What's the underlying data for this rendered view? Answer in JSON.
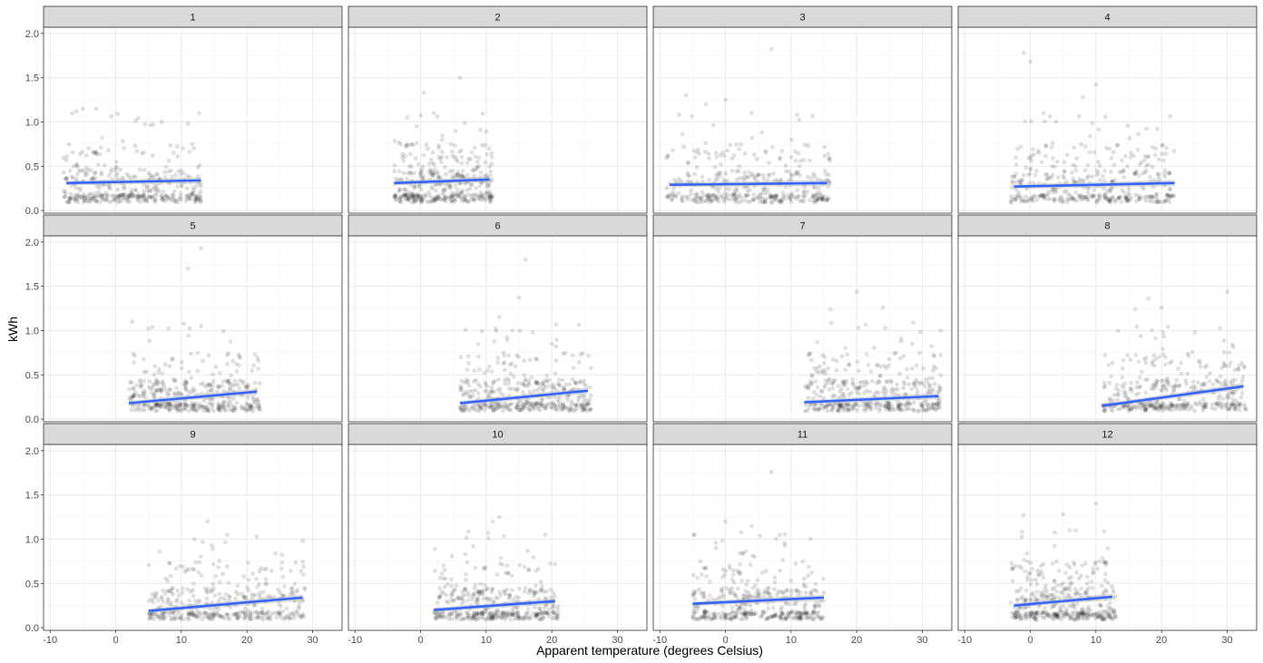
{
  "chart_data": {
    "type": "scatter",
    "title": "",
    "xlabel": "Apparent temperature (degrees Celsius)",
    "ylabel": "kWh",
    "xlim": [
      -11,
      34.5
    ],
    "ylim": [
      -0.03,
      2.07
    ],
    "xticks": [
      -10,
      0,
      10,
      20,
      30
    ],
    "xtick_labels": [
      "-10",
      "0",
      "10",
      "20",
      "30"
    ],
    "yticks": [
      0,
      0.5,
      1,
      1.5,
      2
    ],
    "ytick_labels": [
      "0.0",
      "0.5",
      "1.0",
      "1.5",
      "2.0"
    ],
    "grid": true,
    "point_alpha": 0.12,
    "colors": {
      "trend": "#3366ff",
      "band": "#bdbdbd",
      "points": "#000000",
      "strip": "#d9d9d9",
      "grid": "#ebebeb"
    },
    "facet_layout": {
      "rows": 3,
      "cols": 4
    },
    "facets": [
      {
        "label": "1",
        "temp_range": [
          -8,
          13
        ],
        "fit": [
          [
            -7.5,
            0.31
          ],
          [
            13,
            0.34
          ]
        ],
        "outliers": [
          [
            -5,
            1.15
          ],
          [
            7,
            1.0
          ],
          [
            -6,
            1.12
          ],
          [
            -3,
            1.15
          ],
          [
            11,
            0.98
          ]
        ]
      },
      {
        "label": "2",
        "temp_range": [
          -4,
          11
        ],
        "fit": [
          [
            -4,
            0.31
          ],
          [
            10.5,
            0.35
          ]
        ],
        "outliers": [
          [
            6,
            1.5
          ],
          [
            0.5,
            1.33
          ],
          [
            -2,
            1.05
          ],
          [
            2,
            1.1
          ]
        ]
      },
      {
        "label": "3",
        "temp_range": [
          -9,
          16
        ],
        "fit": [
          [
            -8.5,
            0.29
          ],
          [
            15.5,
            0.31
          ]
        ],
        "outliers": [
          [
            7,
            1.82
          ],
          [
            -6,
            1.3
          ],
          [
            0,
            1.25
          ],
          [
            -3,
            1.2
          ],
          [
            4,
            1.1
          ]
        ]
      },
      {
        "label": "4",
        "temp_range": [
          -3,
          22
        ],
        "fit": [
          [
            -2.5,
            0.27
          ],
          [
            22,
            0.31
          ]
        ],
        "outliers": [
          [
            -1,
            1.78
          ],
          [
            0,
            1.68
          ],
          [
            10,
            1.42
          ],
          [
            8,
            1.28
          ],
          [
            2,
            1.1
          ]
        ]
      },
      {
        "label": "5",
        "temp_range": [
          2,
          22
        ],
        "fit": [
          [
            2,
            0.18
          ],
          [
            21.5,
            0.31
          ]
        ],
        "outliers": [
          [
            13,
            1.93
          ],
          [
            11,
            1.7
          ],
          [
            5,
            1.02
          ],
          [
            13,
            1.05
          ]
        ]
      },
      {
        "label": "6",
        "temp_range": [
          6,
          26
        ],
        "fit": [
          [
            6,
            0.18
          ],
          [
            25.5,
            0.32
          ]
        ],
        "outliers": [
          [
            16,
            1.8
          ],
          [
            15,
            1.37
          ],
          [
            12,
            1.15
          ],
          [
            14,
            1.0
          ]
        ]
      },
      {
        "label": "7",
        "temp_range": [
          12,
          33
        ],
        "fit": [
          [
            12,
            0.19
          ],
          [
            32.5,
            0.26
          ]
        ],
        "outliers": [
          [
            20,
            1.44
          ],
          [
            16,
            1.24
          ],
          [
            24,
            1.26
          ],
          [
            14,
            0.87
          ]
        ]
      },
      {
        "label": "8",
        "temp_range": [
          11,
          33
        ],
        "fit": [
          [
            11,
            0.15
          ],
          [
            32.5,
            0.37
          ]
        ],
        "outliers": [
          [
            30,
            1.44
          ],
          [
            18,
            1.36
          ],
          [
            16,
            1.24
          ],
          [
            20,
            1.26
          ]
        ]
      },
      {
        "label": "9",
        "temp_range": [
          5,
          29
        ],
        "fit": [
          [
            5,
            0.19
          ],
          [
            28.5,
            0.34
          ]
        ],
        "outliers": [
          [
            14,
            1.2
          ],
          [
            17,
            1.05
          ],
          [
            28.5,
            0.98
          ],
          [
            12,
            1.0
          ]
        ]
      },
      {
        "label": "10",
        "temp_range": [
          2,
          21
        ],
        "fit": [
          [
            2,
            0.2
          ],
          [
            20.5,
            0.3
          ]
        ],
        "outliers": [
          [
            12,
            1.25
          ],
          [
            11,
            1.2
          ],
          [
            19,
            1.05
          ],
          [
            8,
            0.92
          ]
        ]
      },
      {
        "label": "11",
        "temp_range": [
          -5,
          15
        ],
        "fit": [
          [
            -5,
            0.27
          ],
          [
            15,
            0.34
          ]
        ],
        "outliers": [
          [
            7,
            1.76
          ],
          [
            0,
            1.2
          ],
          [
            4,
            1.15
          ],
          [
            -4,
            0.43
          ]
        ]
      },
      {
        "label": "12",
        "temp_range": [
          -3,
          13
        ],
        "fit": [
          [
            -2.5,
            0.25
          ],
          [
            12.5,
            0.35
          ]
        ],
        "outliers": [
          [
            10,
            1.4
          ],
          [
            5,
            1.28
          ],
          [
            -1,
            1.27
          ],
          [
            6,
            1.1
          ]
        ]
      }
    ]
  }
}
